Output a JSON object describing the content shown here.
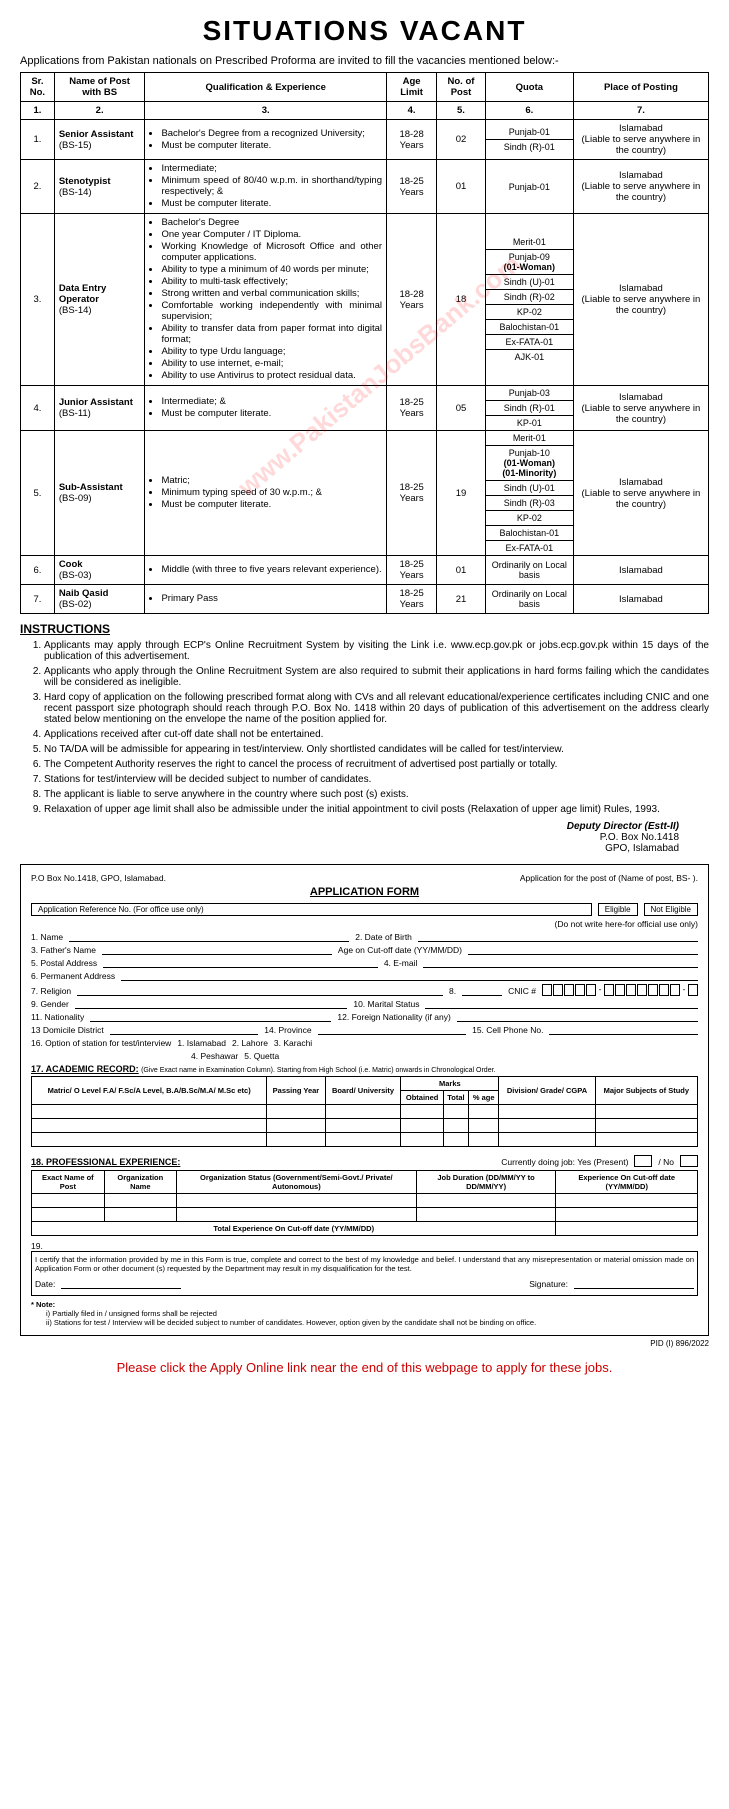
{
  "title": "SITUATIONS VACANT",
  "intro": "Applications from Pakistan nationals on Prescribed Proforma are invited to fill the vacancies mentioned below:-",
  "watermark": "www.PakistanJobsBank.com",
  "headers": {
    "c1": "Sr. No.",
    "c2": "Name of Post with BS",
    "c3": "Qualification & Experience",
    "c4": "Age Limit",
    "c5": "No. of Post",
    "c6": "Quota",
    "c7": "Place of Posting",
    "n1": "1.",
    "n2": "2.",
    "n3": "3.",
    "n4": "4.",
    "n5": "5.",
    "n6": "6.",
    "n7": "7."
  },
  "rows": [
    {
      "sr": "1.",
      "post": "Senior Assistant",
      "bs": "(BS-15)",
      "qual": [
        "Bachelor's Degree from a recognized University;",
        "Must be computer literate."
      ],
      "age": "18-28 Years",
      "num": "02",
      "quota": [
        "Punjab-01",
        "Sindh (R)-01"
      ],
      "place": "Islamabad",
      "note": "(Liable to serve anywhere in the country)"
    },
    {
      "sr": "2.",
      "post": "Stenotypist",
      "bs": "(BS-14)",
      "qual": [
        "Intermediate;",
        "Minimum speed of 80/40 w.p.m. in shorthand/typing respectively; &",
        "Must be computer literate."
      ],
      "age": "18-25 Years",
      "num": "01",
      "quota": [
        "Punjab-01"
      ],
      "place": "Islamabad",
      "note": "(Liable to serve anywhere in the country)"
    },
    {
      "sr": "3.",
      "post": "Data Entry Operator",
      "bs": "(BS-14)",
      "qual": [
        "Bachelor's Degree",
        "One year Computer / IT Diploma.",
        "Working Knowledge of Microsoft Office and other computer applications.",
        "Ability to type a minimum of 40 words per minute;",
        "Ability to multi-task effectively;",
        "Strong written and verbal communication skills;",
        "Comfortable working independently with minimal supervision;",
        "Ability to transfer data from paper format into digital format;",
        "Ability to type Urdu language;",
        "Ability to use internet, e-mail;",
        "Ability to use Antivirus to protect residual data."
      ],
      "age": "18-28 Years",
      "num": "18",
      "quota": [
        "Merit-01",
        "Punjab-09|(01-Woman)",
        "Sindh (U)-01",
        "Sindh (R)-02",
        "KP-02",
        "Balochistan-01",
        "Ex-FATA-01",
        "AJK-01"
      ],
      "place": "Islamabad",
      "note": "(Liable to serve anywhere in the country)"
    },
    {
      "sr": "4.",
      "post": "Junior Assistant",
      "bs": "(BS-11)",
      "qual": [
        "Intermediate; &",
        "Must be computer literate."
      ],
      "age": "18-25 Years",
      "num": "05",
      "quota": [
        "Punjab-03",
        "Sindh (R)-01",
        "KP-01"
      ],
      "place": "Islamabad",
      "note": "(Liable to serve anywhere in the country)"
    },
    {
      "sr": "5.",
      "post": "Sub-Assistant",
      "bs": "(BS-09)",
      "qual": [
        "Matric;",
        "Minimum typing speed of 30 w.p.m.; &",
        "Must be computer literate."
      ],
      "age": "18-25 Years",
      "num": "19",
      "quota": [
        "Merit-01",
        "Punjab-10|(01-Woman)|(01-Minority)",
        "Sindh (U)-01",
        "Sindh (R)-03",
        "KP-02",
        "Balochistan-01",
        "Ex-FATA-01"
      ],
      "place": "Islamabad",
      "note": "(Liable to serve anywhere in the country)"
    },
    {
      "sr": "6.",
      "post": "Cook",
      "bs": "(BS-03)",
      "qual": [
        "Middle (with three to five years relevant experience)."
      ],
      "age": "18-25 Years",
      "num": "01",
      "quota": [
        "Ordinarily on Local basis"
      ],
      "place": "Islamabad",
      "note": ""
    },
    {
      "sr": "7.",
      "post": "Naib Qasid",
      "bs": "(BS-02)",
      "qual": [
        "Primary Pass"
      ],
      "age": "18-25 Years",
      "num": "21",
      "quota": [
        "Ordinarily on Local basis"
      ],
      "place": "Islamabad",
      "note": ""
    }
  ],
  "instrTitle": "INSTRUCTIONS",
  "instructions": [
    "Applicants may apply through ECP's Online Recruitment System by visiting the Link i.e. www.ecp.gov.pk or jobs.ecp.gov.pk within 15 days of the publication of this advertisement.",
    "Applicants who apply through the Online Recruitment System are also required to submit their applications in hard forms failing which the candidates will be considered as ineligible.",
    "Hard copy of application on the following prescribed format along with CVs and all relevant educational/experience certificates including CNIC and one recent passport size photograph should reach through P.O. Box No. 1418 within 20 days of publication of this advertisement on the address clearly stated below mentioning on the envelope the name of the position applied for.",
    "Applications received after cut-off date shall not be entertained.",
    "No TA/DA will be admissible for appearing in test/interview. Only shortlisted candidates will be called for test/interview.",
    "The Competent Authority reserves the right to cancel the process of recruitment of advertised post partially or totally.",
    "Stations for test/interview will be decided subject to number of candidates.",
    "The applicant is liable to serve anywhere in the country where such post (s) exists.",
    "Relaxation of upper age limit shall also be admissible under the initial appointment to civil posts (Relaxation of upper age limit) Rules, 1993."
  ],
  "sig": {
    "l1": "Deputy Director (Estt-II)",
    "l2": "P.O. Box No.1418",
    "l3": "GPO, Islamabad"
  },
  "form": {
    "top": "P.O Box No.1418, GPO, Islamabad.",
    "topR": "Application for the post of  (Name of post, BS-  ).",
    "title": "APPLICATION FORM",
    "ref": "Application Reference No. (For office use only)",
    "elig": "Eligible",
    "nelig": "Not Eligible",
    "off": "(Do not write here-for official use only)",
    "f1": "1.    Name",
    "f2": "2.  Date of Birth",
    "f3": "3.    Father's Name",
    "f3b": "Age on Cut-off date (YY/MM/DD)",
    "f4": "5.    Postal Address",
    "f4b": "4.  E-mail",
    "f5": "6.    Permanent Address",
    "f6": "7.    Religion",
    "f6b": "8.",
    "cnic": "CNIC #",
    "f7": "9.    Gender",
    "f7b": "10.  Marital Status",
    "f8": "11.   Nationality",
    "f8b": "12.  Foreign Nationality (if any)",
    "f9": "13    Domicile District",
    "f9b": "14.  Province",
    "f9c": "15.  Cell Phone No.",
    "f10": "16.   Option of station for test/interview",
    "o1": "1.   Islamabad",
    "o2": "2.   Lahore",
    "o3": "3.   Karachi",
    "o4": "4.   Peshawar",
    "o5": "5.   Quetta",
    "acad": "17.    ACADEMIC RECORD:",
    "acadNote": "(Give Exact name in Examination Column). Starting from High School (i.e. Matric) onwards in Chronological Order.",
    "ah1": "Matric/ O Level F.A/ F.Sc/A Level, B.A/B.Sc/M.A/ M.Sc etc)",
    "ah2": "Passing Year",
    "ah3": "Board/ University",
    "ahm": "Marks",
    "ah4": "Obtained",
    "ah5": "Total",
    "ah6": "% age",
    "ah7": "Division/ Grade/ CGPA",
    "ah8": "Major Subjects of Study",
    "prof": "18.    PROFESSIONAL EXPERIENCE:",
    "profR": "Currently doing job: Yes (Present)",
    "profNo": "/ No",
    "ph1": "Exact Name of Post",
    "ph2": "Organization Name",
    "ph3": "Organization Status (Government/Semi-Govt./ Private/ Autonomous)",
    "ph4": "Job Duration (DD/MM/YY to DD/MM/YY)",
    "ph5": "Experience On Cut-off date (YY/MM/DD)",
    "tot": "Total Experience On Cut-off date (YY/MM/DD)",
    "cert": "19.",
    "certTxt": "I certify that the information provided by me in this Form is true, complete and correct to the best of my knowledge and belief. I understand that any misrepresentation or material omission made on Application Form or other document (s) requested by the Department may result in my disqualification for the test.",
    "date": "Date:",
    "sign": "Signature:",
    "note": "* Note:",
    "n1": "i)   Partially filed in / unsigned forms shall be rejected",
    "n2": "ii)  Stations for test / Interview will be decided subject to number of candidates. However, option given by the candidate shall not be binding on office."
  },
  "pid": "PID (I) 896/2022",
  "cta": "Please click the Apply Online link near the end of this webpage to apply for these jobs."
}
